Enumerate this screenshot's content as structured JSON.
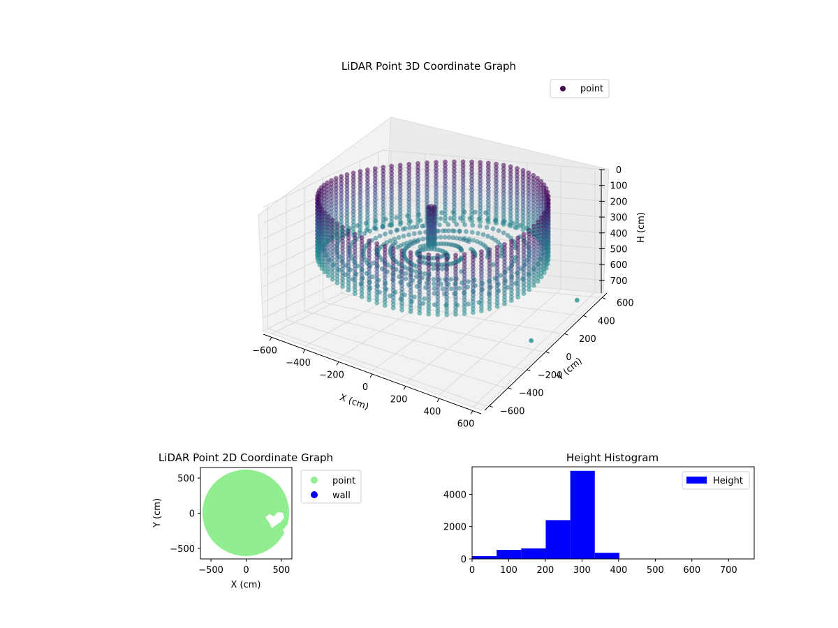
{
  "chart_data": [
    {
      "type": "scatter",
      "title": "LiDAR Point 3D Coordinate Graph",
      "xlabel": "X (cm)",
      "ylabel": "Y (cm)",
      "zlabel": "H (cm)",
      "xlim": [
        -650,
        650
      ],
      "ylim": [
        -650,
        650
      ],
      "zlim": [
        0,
        780
      ],
      "z_inverted": true,
      "xticks": [
        -600,
        -400,
        -200,
        0,
        200,
        400,
        600
      ],
      "yticks": [
        -600,
        -400,
        -200,
        0,
        200,
        400,
        600
      ],
      "zticks": [
        0,
        100,
        200,
        300,
        400,
        500,
        600,
        700
      ],
      "legend": {
        "position": "top-right",
        "entries": [
          {
            "label": "point",
            "color": "#440154"
          }
        ]
      },
      "colormap": "viridis",
      "series": [
        {
          "name": "point",
          "description_hint": "cylindrical ring wall radius ~600 cm, heights 0-380 cm, plus central column and floor",
          "ring_radius": 600,
          "height_range": [
            0,
            380
          ],
          "outlier_points": [
            {
              "x": 550,
              "y": 550,
              "h": 780
            },
            {
              "x": 540,
              "y": 80,
              "h": 780
            }
          ]
        }
      ]
    },
    {
      "type": "scatter",
      "title": "LiDAR Point 2D Coordinate Graph",
      "xlabel": "X (cm)",
      "ylabel": "Y (cm)",
      "xlim": [
        -650,
        650
      ],
      "ylim": [
        -650,
        650
      ],
      "xticks": [
        -500,
        0,
        500
      ],
      "yticks": [
        -500,
        0,
        500
      ],
      "legend": {
        "position": "outside-right",
        "entries": [
          {
            "label": "point",
            "color": "#90ee90"
          },
          {
            "label": "wall",
            "color": "#0000ff"
          }
        ]
      },
      "series": [
        {
          "name": "point",
          "color": "#90ee90",
          "shape": "disk",
          "radius": 620
        }
      ]
    },
    {
      "type": "bar",
      "title": "Height Histogram",
      "xlim": [
        0,
        770
      ],
      "ylim": [
        0,
        5700
      ],
      "xticks": [
        0,
        100,
        200,
        300,
        400,
        500,
        600,
        700
      ],
      "yticks": [
        0,
        2000,
        4000
      ],
      "legend": {
        "position": "top-right",
        "entries": [
          {
            "label": "Height",
            "color": "#0000ff"
          }
        ]
      },
      "bin_edges": [
        0,
        67,
        134,
        201,
        268,
        335,
        402,
        469,
        536,
        603,
        670,
        737
      ],
      "values": [
        170,
        560,
        650,
        2400,
        5450,
        380,
        0,
        0,
        0,
        0,
        0
      ],
      "color": "#0000ff"
    }
  ]
}
